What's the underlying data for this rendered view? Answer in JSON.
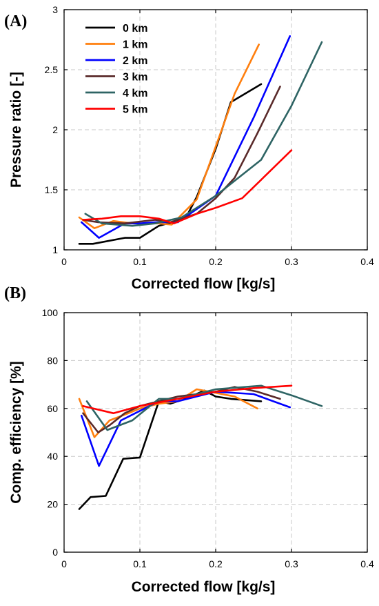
{
  "chart_data": [
    {
      "type": "line",
      "panel_label": "(A)",
      "xlabel": "Corrected flow [kg/s]",
      "ylabel": "Pressure ratio [-]",
      "xlim": [
        0,
        0.4
      ],
      "ylim": [
        1,
        3
      ],
      "xticks": [
        0,
        0.1,
        0.2,
        0.3,
        0.4
      ],
      "xtick_labels": [
        "0",
        "0.1",
        "0.2",
        "0.3",
        "0.4"
      ],
      "yticks": [
        1,
        1.5,
        2,
        2.5,
        3
      ],
      "ytick_labels": [
        "1",
        "1.5",
        "2",
        "2.5",
        "3"
      ],
      "grid": true,
      "legend_position": "top-left",
      "series": [
        {
          "name": "0 km",
          "color": "#000000",
          "x": [
            0.02,
            0.038,
            0.08,
            0.1,
            0.125,
            0.16,
            0.175,
            0.2,
            0.22,
            0.26
          ],
          "y": [
            1.05,
            1.05,
            1.1,
            1.1,
            1.2,
            1.26,
            1.44,
            1.84,
            2.23,
            2.38
          ]
        },
        {
          "name": "1 km",
          "color": "#ff7f0e",
          "x": [
            0.02,
            0.04,
            0.065,
            0.09,
            0.125,
            0.142,
            0.175,
            0.2,
            0.225,
            0.257
          ],
          "y": [
            1.27,
            1.18,
            1.24,
            1.22,
            1.22,
            1.21,
            1.42,
            1.86,
            2.3,
            2.71
          ]
        },
        {
          "name": "2 km",
          "color": "#0000ff",
          "x": [
            0.023,
            0.046,
            0.08,
            0.1,
            0.12,
            0.15,
            0.2,
            0.25,
            0.298
          ],
          "y": [
            1.23,
            1.1,
            1.22,
            1.22,
            1.23,
            1.23,
            1.45,
            2.1,
            2.78
          ]
        },
        {
          "name": "3 km",
          "color": "#5a2a2a",
          "x": [
            0.025,
            0.045,
            0.08,
            0.12,
            0.14,
            0.175,
            0.2,
            0.225,
            0.255,
            0.285
          ],
          "y": [
            1.25,
            1.23,
            1.22,
            1.25,
            1.23,
            1.3,
            1.43,
            1.6,
            1.97,
            2.36
          ]
        },
        {
          "name": "4 km",
          "color": "#2e6464",
          "x": [
            0.028,
            0.05,
            0.09,
            0.12,
            0.155,
            0.2,
            0.26,
            0.3,
            0.34
          ],
          "y": [
            1.3,
            1.22,
            1.2,
            1.22,
            1.27,
            1.45,
            1.75,
            2.2,
            2.73
          ]
        },
        {
          "name": "5 km",
          "color": "#ff0000",
          "x": [
            0.025,
            0.05,
            0.075,
            0.1,
            0.125,
            0.145,
            0.175,
            0.2,
            0.235,
            0.3
          ],
          "y": [
            1.25,
            1.26,
            1.28,
            1.28,
            1.26,
            1.22,
            1.3,
            1.35,
            1.43,
            1.83
          ]
        }
      ]
    },
    {
      "type": "line",
      "panel_label": "(B)",
      "xlabel": "Corrected flow [kg/s]",
      "ylabel": "Comp. efficiency [%]",
      "xlim": [
        0,
        0.4
      ],
      "ylim": [
        0,
        100
      ],
      "xticks": [
        0,
        0.1,
        0.2,
        0.3,
        0.4
      ],
      "xtick_labels": [
        "0",
        "0.1",
        "0.2",
        "0.3",
        "0.4"
      ],
      "yticks": [
        0,
        20,
        40,
        60,
        80,
        100
      ],
      "ytick_labels": [
        "0",
        "20",
        "40",
        "60",
        "80",
        "100"
      ],
      "grid": true,
      "series": [
        {
          "name": "0 km",
          "color": "#000000",
          "x": [
            0.02,
            0.035,
            0.055,
            0.078,
            0.1,
            0.125,
            0.14,
            0.16,
            0.185,
            0.2,
            0.22,
            0.26
          ],
          "y": [
            18,
            23,
            23.5,
            39,
            39.5,
            63,
            62,
            64,
            67.5,
            65,
            64,
            63
          ]
        },
        {
          "name": "1 km",
          "color": "#ff7f0e",
          "x": [
            0.02,
            0.04,
            0.06,
            0.085,
            0.1,
            0.125,
            0.15,
            0.175,
            0.2,
            0.225,
            0.255
          ],
          "y": [
            64,
            48,
            55,
            58,
            60,
            62,
            63,
            68,
            66.5,
            65,
            60
          ]
        },
        {
          "name": "2 km",
          "color": "#0000ff",
          "x": [
            0.023,
            0.046,
            0.075,
            0.1,
            0.125,
            0.15,
            0.2,
            0.25,
            0.298
          ],
          "y": [
            57,
            36,
            55,
            59,
            63,
            63,
            67,
            66,
            60.5
          ]
        },
        {
          "name": "3 km",
          "color": "#5a2a2a",
          "x": [
            0.025,
            0.045,
            0.06,
            0.08,
            0.1,
            0.125,
            0.15,
            0.2,
            0.225,
            0.255,
            0.285
          ],
          "y": [
            58,
            50,
            53,
            58,
            61,
            63,
            65,
            67,
            69,
            67,
            64
          ]
        },
        {
          "name": "4 km",
          "color": "#2e6464",
          "x": [
            0.03,
            0.057,
            0.09,
            0.125,
            0.15,
            0.2,
            0.26,
            0.3,
            0.34
          ],
          "y": [
            63,
            51,
            55,
            64,
            64,
            68,
            69.5,
            65.5,
            61
          ]
        },
        {
          "name": "5 km",
          "color": "#ff0000",
          "x": [
            0.025,
            0.065,
            0.1,
            0.15,
            0.2,
            0.25,
            0.3
          ],
          "y": [
            61,
            58,
            61,
            64,
            67,
            68.5,
            69.5
          ]
        }
      ]
    }
  ]
}
